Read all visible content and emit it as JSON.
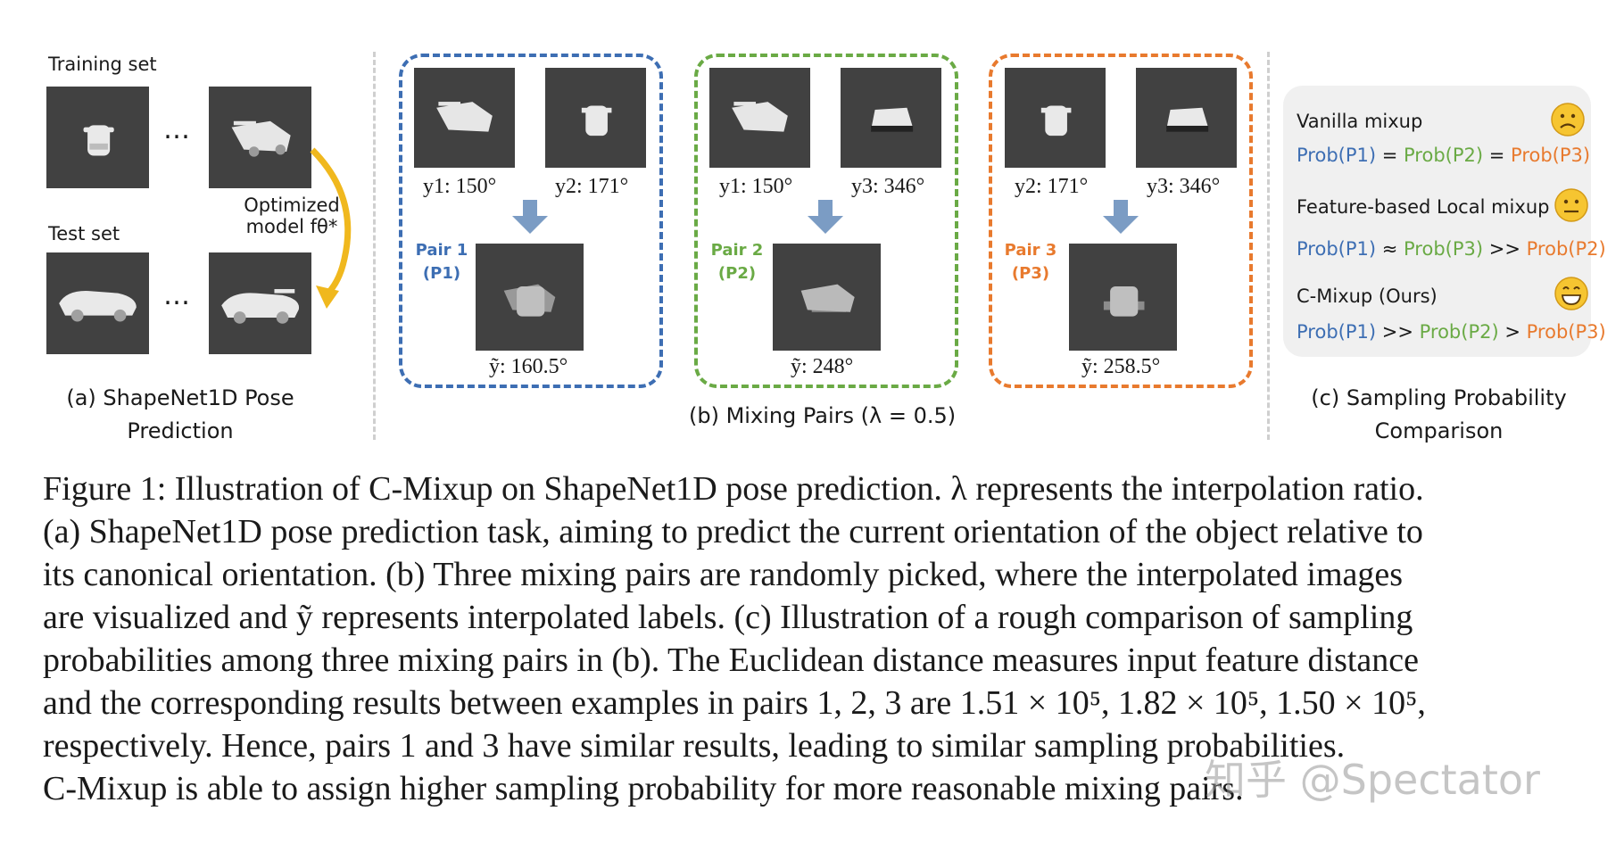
{
  "panel_a": {
    "training_label": "Training set",
    "test_label": "Test set",
    "ellipsis_top": "…",
    "ellipsis_bottom": "…",
    "model_label_line1": "Optimized",
    "model_label_line2": "model fθ*",
    "caption_line1": "(a) ShapeNet1D Pose",
    "caption_line2": "Prediction"
  },
  "panel_b": {
    "caption": "(b) Mixing Pairs (λ = 0.5)",
    "pairs": [
      {
        "tag_line1": "Pair 1",
        "tag_line2": "(P1)",
        "color": "#3d6eb3",
        "left_label": "y1: 150°",
        "right_label": "y2: 171°",
        "result_label": "ỹ: 160.5°"
      },
      {
        "tag_line1": "Pair 2",
        "tag_line2": "(P2)",
        "color": "#6aaa45",
        "left_label": "y1: 150°",
        "right_label": "y3: 346°",
        "result_label": "ỹ: 248°"
      },
      {
        "tag_line1": "Pair 3",
        "tag_line2": "(P3)",
        "color": "#e87a2e",
        "left_label": "y2: 171°",
        "right_label": "y3: 346°",
        "result_label": "ỹ: 258.5°"
      }
    ]
  },
  "panel_c": {
    "caption_line1": "(c) Sampling Probability",
    "caption_line2": "Comparison",
    "rows": [
      {
        "title": "Vanilla mixup",
        "emoji": "frowning-face-icon",
        "p_a": "Prob(P1)",
        "op1": " = ",
        "p_b": "Prob(P2)",
        "op2": " = ",
        "p_c": "Prob(P3)"
      },
      {
        "title": "Feature-based Local mixup",
        "emoji": "neutral-face-icon",
        "p_a": "Prob(P1)",
        "op1": " ≈ ",
        "p_b": "Prob(P3)",
        "op2": " >> ",
        "p_c": "Prob(P2)"
      },
      {
        "title": "C-Mixup (Ours)",
        "emoji": "grinning-face-icon",
        "p_a": "Prob(P1)",
        "op1": " >> ",
        "p_b": "Prob(P2)",
        "op2": " > ",
        "p_c": "Prob(P3)"
      }
    ]
  },
  "caption": {
    "lines": [
      "Figure 1: Illustration of C-Mixup on ShapeNet1D pose prediction. λ represents the interpolation ratio.",
      "(a) ShapeNet1D pose prediction task, aiming to predict the current orientation of the object relative to",
      "its canonical orientation. (b) Three mixing pairs are randomly picked, where the interpolated images",
      "are visualized and ỹ represents interpolated labels. (c) Illustration of a rough comparison of sampling",
      "probabilities among three mixing pairs in (b). The Euclidean distance measures input feature distance",
      "and the corresponding results between examples in pairs 1, 2, 3 are 1.51 × 10⁵, 1.82 × 10⁵, 1.50 × 10⁵,",
      "respectively. Hence, pairs 1 and 3 have similar results, leading to similar sampling probabilities.",
      "C-Mixup is able to assign higher sampling probability for more reasonable mixing pairs."
    ]
  },
  "watermark": "知乎 @Spectator",
  "colors": {
    "blue": "#3d6eb3",
    "green": "#6aaa45",
    "orange": "#e87a2e",
    "tile": "#414141",
    "arrow": "#f0b81e"
  }
}
